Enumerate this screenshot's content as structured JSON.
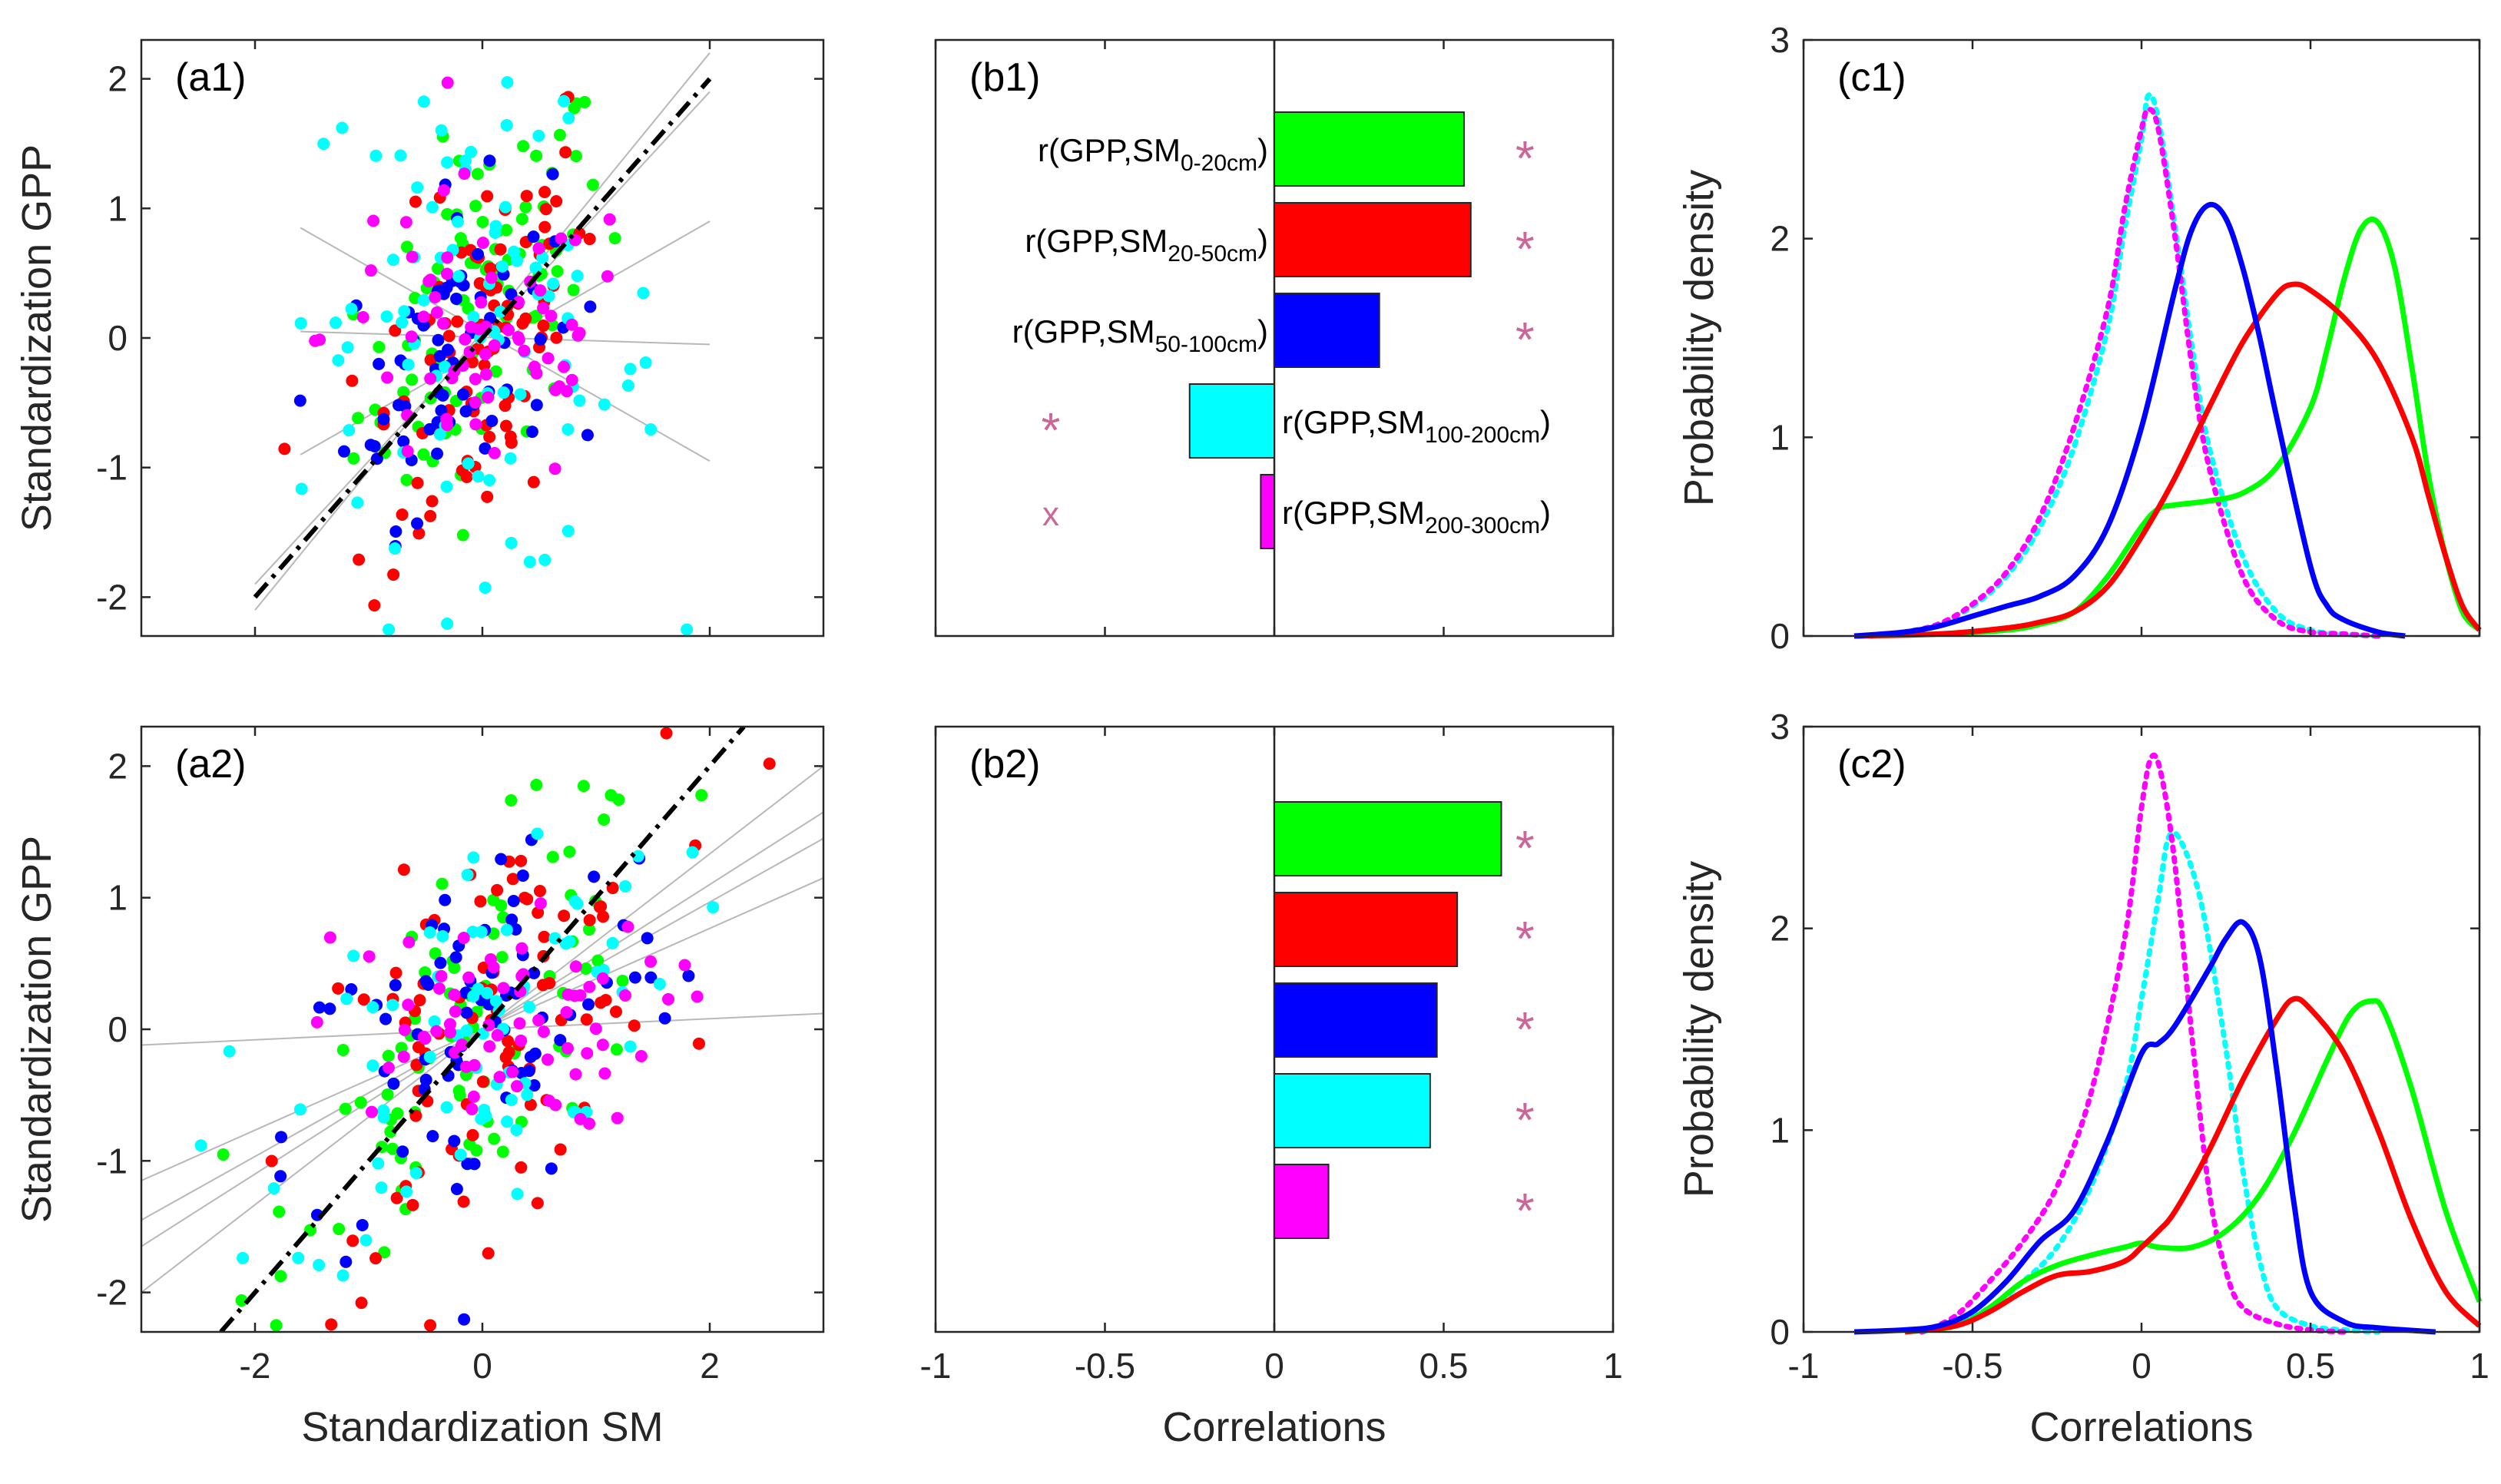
{
  "figure": {
    "series_colors": [
      "#00ff00",
      "#ff0000",
      "#0000ff",
      "#00ffff",
      "#ff00ff"
    ],
    "marker_color": "#cc6699",
    "panels": {
      "a1": {
        "label": "(a1)",
        "ylabel": "Standardization GPP",
        "xlabel": ""
      },
      "a2": {
        "label": "(a2)",
        "ylabel": "Standardization GPP",
        "xlabel": "Standardization SM"
      },
      "b1": {
        "label": "(b1)",
        "xlabel": ""
      },
      "b2": {
        "label": "(b2)",
        "xlabel": "Correlations"
      },
      "c1": {
        "label": "(c1)",
        "ylabel": "Probability density",
        "xlabel": ""
      },
      "c2": {
        "label": "(c2)",
        "ylabel": "Probability density",
        "xlabel": "Correlations"
      }
    }
  },
  "chart_data": [
    {
      "id": "a1",
      "type": "scatter",
      "title": "(a1)",
      "xlabel": "",
      "ylabel": "Standardization GPP",
      "xlim": [
        -3,
        3
      ],
      "ylim": [
        -2.3,
        2.3
      ],
      "yticks": [
        "-2",
        "-1",
        "0",
        "1",
        "2"
      ],
      "xticks": [],
      "one_to_one_line": {
        "x": [
          -2,
          2
        ],
        "y": [
          -2,
          2
        ],
        "style": "dash-dot",
        "color": "#000000"
      },
      "fit_lines": [
        {
          "x": [
            -2,
            2
          ],
          "y": [
            -2.1,
            2.2
          ]
        },
        {
          "x": [
            -2,
            2
          ],
          "y": [
            -1.9,
            1.9
          ]
        },
        {
          "x": [
            -1.6,
            2
          ],
          "y": [
            -0.9,
            0.9
          ]
        },
        {
          "x": [
            -1.6,
            2
          ],
          "y": [
            0.85,
            -0.95
          ]
        },
        {
          "x": [
            -1.6,
            2
          ],
          "y": [
            0.05,
            -0.05
          ]
        }
      ],
      "series": [
        {
          "name": "SM0-20cm",
          "color": "#00ff00",
          "cluster": {
            "mx": 0,
            "my": 0.25,
            "sx": 0.55,
            "sy": 0.75,
            "r": 0.55,
            "n": 90
          }
        },
        {
          "name": "SM20-50cm",
          "color": "#ff0000",
          "cluster": {
            "mx": 0,
            "my": 0,
            "sx": 0.5,
            "sy": 0.9,
            "r": 0.55,
            "n": 90
          }
        },
        {
          "name": "SM50-100cm",
          "color": "#0000ff",
          "cluster": {
            "mx": -0.3,
            "my": -0.1,
            "sx": 0.45,
            "sy": 0.6,
            "r": 0.3,
            "n": 70
          }
        },
        {
          "name": "SM100-200cm",
          "color": "#00ffff",
          "cluster": {
            "mx": 0,
            "my": 0,
            "sx": 0.8,
            "sy": 0.9,
            "r": -0.25,
            "n": 90
          }
        },
        {
          "name": "SM200-300cm",
          "color": "#ff00ff",
          "cluster": {
            "mx": 0,
            "my": 0,
            "sx": 0.7,
            "sy": 0.6,
            "r": -0.02,
            "n": 70
          }
        }
      ]
    },
    {
      "id": "a2",
      "type": "scatter",
      "title": "(a2)",
      "xlabel": "Standardization SM",
      "ylabel": "Standardization GPP",
      "xlim": [
        -3,
        3
      ],
      "ylim": [
        -2.3,
        2.3
      ],
      "yticks": [
        "-2",
        "-1",
        "0",
        "1",
        "2"
      ],
      "xticks": [
        "-2",
        "0",
        "2"
      ],
      "one_to_one_line": {
        "x": [
          -2.3,
          2.3
        ],
        "y": [
          -2.3,
          2.3
        ],
        "style": "dash-dot",
        "color": "#000000"
      },
      "fit_lines": [
        {
          "x": [
            -3,
            3
          ],
          "y": [
            -2.0,
            2.0
          ]
        },
        {
          "x": [
            -3,
            3
          ],
          "y": [
            -1.65,
            1.65
          ]
        },
        {
          "x": [
            -3,
            3
          ],
          "y": [
            -1.45,
            1.45
          ]
        },
        {
          "x": [
            -3,
            3
          ],
          "y": [
            -1.15,
            1.15
          ]
        },
        {
          "x": [
            -3,
            3
          ],
          "y": [
            -0.12,
            0.12
          ]
        }
      ],
      "series": [
        {
          "name": "SM0-20cm",
          "color": "#00ff00",
          "cluster": {
            "mx": 0,
            "my": 0,
            "sx": 0.8,
            "sy": 0.85,
            "r": 0.66,
            "n": 85
          }
        },
        {
          "name": "SM20-50cm",
          "color": "#ff0000",
          "cluster": {
            "mx": 0,
            "my": 0,
            "sx": 0.8,
            "sy": 0.85,
            "r": 0.54,
            "n": 85
          }
        },
        {
          "name": "SM50-100cm",
          "color": "#0000ff",
          "cluster": {
            "mx": 0,
            "my": 0,
            "sx": 0.85,
            "sy": 0.85,
            "r": 0.48,
            "n": 80
          }
        },
        {
          "name": "SM100-200cm",
          "color": "#00ffff",
          "cluster": {
            "mx": 0,
            "my": 0,
            "sx": 0.85,
            "sy": 0.8,
            "r": 0.45,
            "n": 75
          }
        },
        {
          "name": "SM200-300cm",
          "color": "#ff00ff",
          "cluster": {
            "mx": 0,
            "my": 0,
            "sx": 0.8,
            "sy": 0.4,
            "r": 0.1,
            "n": 70
          }
        }
      ]
    },
    {
      "id": "b1",
      "type": "bar",
      "orientation": "horizontal",
      "title": "(b1)",
      "xlabel": "",
      "xlim": [
        -1,
        1
      ],
      "xticks": [],
      "bars": [
        {
          "label_main": "r(GPP,SM",
          "label_sub": "0-20cm",
          "label_end": ")",
          "value": 0.56,
          "color": "#00ff00",
          "sig": "*",
          "sig_x": 0.74
        },
        {
          "label_main": "r(GPP,SM",
          "label_sub": "20-50cm",
          "label_end": ")",
          "value": 0.58,
          "color": "#ff0000",
          "sig": "*",
          "sig_x": 0.74
        },
        {
          "label_main": "r(GPP,SM",
          "label_sub": "50-100cm",
          "label_end": ")",
          "value": 0.31,
          "color": "#0000ff",
          "sig": "*",
          "sig_x": 0.74
        },
        {
          "label_main": "r(GPP,SM",
          "label_sub": "100-200cm",
          "label_end": ")",
          "value": -0.25,
          "color": "#00ffff",
          "sig": "*",
          "sig_x": -0.66
        },
        {
          "label_main": "r(GPP,SM",
          "label_sub": "200-300cm",
          "label_end": ")",
          "value": -0.04,
          "color": "#ff00ff",
          "sig": "x",
          "sig_x": -0.66
        }
      ]
    },
    {
      "id": "b2",
      "type": "bar",
      "orientation": "horizontal",
      "title": "(b2)",
      "xlabel": "Correlations",
      "xlim": [
        -1,
        1
      ],
      "xticks": [
        "-1",
        "-0.5",
        "0",
        "0.5",
        "1"
      ],
      "bars": [
        {
          "value": 0.67,
          "color": "#00ff00",
          "sig": "*",
          "sig_x": 0.74
        },
        {
          "value": 0.54,
          "color": "#ff0000",
          "sig": "*",
          "sig_x": 0.74
        },
        {
          "value": 0.48,
          "color": "#0000ff",
          "sig": "*",
          "sig_x": 0.74
        },
        {
          "value": 0.46,
          "color": "#00ffff",
          "sig": "*",
          "sig_x": 0.74
        },
        {
          "value": 0.16,
          "color": "#ff00ff",
          "sig": "*",
          "sig_x": 0.74
        }
      ]
    },
    {
      "id": "c1",
      "type": "line",
      "title": "(c1)",
      "xlabel": "",
      "ylabel": "Probability density",
      "xlim": [
        -1,
        1
      ],
      "ylim": [
        0,
        3
      ],
      "yticks": [
        "0",
        "1",
        "2",
        "3"
      ],
      "xticks": [],
      "series": [
        {
          "name": "SM0-20cm",
          "color": "#00ff00",
          "dash": false,
          "x": [
            -0.85,
            -0.6,
            -0.4,
            -0.3,
            -0.2,
            -0.1,
            0,
            0.05,
            0.1,
            0.2,
            0.3,
            0.4,
            0.5,
            0.55,
            0.6,
            0.65,
            0.7,
            0.75,
            0.8,
            0.85,
            0.9,
            0.95,
            1.0
          ],
          "y": [
            0,
            0.01,
            0.03,
            0.06,
            0.12,
            0.3,
            0.55,
            0.64,
            0.66,
            0.68,
            0.72,
            0.85,
            1.15,
            1.45,
            1.8,
            2.05,
            2.08,
            1.85,
            1.35,
            0.8,
            0.4,
            0.12,
            0.03
          ]
        },
        {
          "name": "SM20-50cm",
          "color": "#ff0000",
          "dash": false,
          "x": [
            -0.85,
            -0.6,
            -0.4,
            -0.3,
            -0.2,
            -0.1,
            0,
            0.1,
            0.2,
            0.3,
            0.4,
            0.45,
            0.5,
            0.6,
            0.7,
            0.8,
            0.85,
            0.9,
            0.95,
            1.0
          ],
          "y": [
            0,
            0.01,
            0.04,
            0.07,
            0.12,
            0.25,
            0.5,
            0.8,
            1.15,
            1.48,
            1.72,
            1.77,
            1.74,
            1.6,
            1.38,
            1.0,
            0.7,
            0.4,
            0.15,
            0.03
          ]
        },
        {
          "name": "SM50-100cm",
          "color": "#0000ff",
          "dash": false,
          "x": [
            -0.85,
            -0.7,
            -0.6,
            -0.5,
            -0.4,
            -0.3,
            -0.2,
            -0.1,
            0,
            0.1,
            0.15,
            0.2,
            0.25,
            0.3,
            0.35,
            0.4,
            0.5,
            0.55,
            0.6,
            0.7,
            0.78
          ],
          "y": [
            0,
            0.02,
            0.05,
            0.1,
            0.15,
            0.2,
            0.3,
            0.55,
            1.05,
            1.75,
            2.05,
            2.17,
            2.1,
            1.85,
            1.5,
            1.1,
            0.35,
            0.15,
            0.08,
            0.02,
            0
          ]
        },
        {
          "name": "SM100-200cm",
          "color": "#00ffff",
          "dash": true,
          "x": [
            -0.8,
            -0.7,
            -0.6,
            -0.5,
            -0.4,
            -0.3,
            -0.2,
            -0.1,
            -0.05,
            0,
            0.02,
            0.05,
            0.1,
            0.15,
            0.2,
            0.3,
            0.4,
            0.5,
            0.6,
            0.7
          ],
          "y": [
            0,
            0.02,
            0.06,
            0.15,
            0.3,
            0.55,
            0.95,
            1.55,
            2.05,
            2.5,
            2.72,
            2.6,
            2.05,
            1.45,
            0.95,
            0.4,
            0.12,
            0.03,
            0.01,
            0
          ]
        },
        {
          "name": "SM200-300cm",
          "color": "#ff00ff",
          "dash": true,
          "x": [
            -0.8,
            -0.7,
            -0.6,
            -0.5,
            -0.4,
            -0.3,
            -0.2,
            -0.1,
            -0.05,
            0,
            0.02,
            0.05,
            0.1,
            0.15,
            0.2,
            0.3,
            0.4,
            0.5,
            0.6,
            0.7
          ],
          "y": [
            0,
            0.02,
            0.06,
            0.16,
            0.32,
            0.6,
            1.05,
            1.65,
            2.15,
            2.55,
            2.65,
            2.55,
            2.0,
            1.35,
            0.85,
            0.3,
            0.08,
            0.02,
            0.01,
            0
          ]
        }
      ]
    },
    {
      "id": "c2",
      "type": "line",
      "title": "(c2)",
      "xlabel": "Correlations",
      "ylabel": "Probability density",
      "xlim": [
        -1,
        1
      ],
      "ylim": [
        0,
        3
      ],
      "yticks": [
        "0",
        "1",
        "2",
        "3"
      ],
      "xticks": [
        "-1",
        "-0.5",
        "0",
        "0.5",
        "1"
      ],
      "series": [
        {
          "name": "SM0-20cm",
          "color": "#00ff00",
          "dash": false,
          "x": [
            -0.7,
            -0.55,
            -0.45,
            -0.35,
            -0.25,
            -0.15,
            -0.05,
            0,
            0.05,
            0.15,
            0.25,
            0.35,
            0.45,
            0.55,
            0.62,
            0.68,
            0.72,
            0.8,
            0.9,
            1.0
          ],
          "y": [
            0,
            0.03,
            0.12,
            0.25,
            0.33,
            0.38,
            0.42,
            0.44,
            0.42,
            0.42,
            0.5,
            0.68,
            0.98,
            1.35,
            1.58,
            1.64,
            1.58,
            1.2,
            0.6,
            0.15
          ]
        },
        {
          "name": "SM20-50cm",
          "color": "#ff0000",
          "dash": false,
          "x": [
            -0.7,
            -0.55,
            -0.45,
            -0.35,
            -0.25,
            -0.15,
            -0.05,
            0,
            0.05,
            0.1,
            0.2,
            0.3,
            0.4,
            0.45,
            0.5,
            0.6,
            0.7,
            0.8,
            0.9,
            1.0
          ],
          "y": [
            0,
            0.03,
            0.1,
            0.2,
            0.28,
            0.3,
            0.35,
            0.42,
            0.5,
            0.6,
            0.9,
            1.25,
            1.55,
            1.65,
            1.6,
            1.38,
            1.0,
            0.55,
            0.2,
            0.03
          ]
        },
        {
          "name": "SM50-100cm",
          "color": "#0000ff",
          "dash": false,
          "x": [
            -0.85,
            -0.7,
            -0.6,
            -0.5,
            -0.4,
            -0.3,
            -0.2,
            -0.1,
            0,
            0.05,
            0.1,
            0.2,
            0.25,
            0.3,
            0.35,
            0.4,
            0.45,
            0.5,
            0.6,
            0.7,
            0.87
          ],
          "y": [
            0,
            0.01,
            0.03,
            0.1,
            0.25,
            0.45,
            0.6,
            0.95,
            1.38,
            1.43,
            1.52,
            1.8,
            1.95,
            2.03,
            1.85,
            1.3,
            0.65,
            0.2,
            0.05,
            0.02,
            0
          ]
        },
        {
          "name": "SM100-200cm",
          "color": "#00ffff",
          "dash": true,
          "x": [
            -0.65,
            -0.55,
            -0.45,
            -0.35,
            -0.25,
            -0.15,
            -0.05,
            0,
            0.05,
            0.08,
            0.12,
            0.18,
            0.25,
            0.3,
            0.35,
            0.4,
            0.5,
            0.6,
            0.7
          ],
          "y": [
            0,
            0.04,
            0.12,
            0.25,
            0.42,
            0.72,
            1.2,
            1.65,
            2.15,
            2.45,
            2.42,
            2.1,
            1.4,
            0.8,
            0.35,
            0.12,
            0.03,
            0.01,
            0
          ]
        },
        {
          "name": "SM200-300cm",
          "color": "#ff00ff",
          "dash": true,
          "x": [
            -0.65,
            -0.55,
            -0.45,
            -0.35,
            -0.25,
            -0.15,
            -0.05,
            0,
            0.03,
            0.06,
            0.1,
            0.15,
            0.2,
            0.25,
            0.3,
            0.4,
            0.5,
            0.6
          ],
          "y": [
            0,
            0.08,
            0.25,
            0.45,
            0.72,
            1.18,
            1.95,
            2.6,
            2.85,
            2.75,
            2.3,
            1.45,
            0.7,
            0.3,
            0.12,
            0.04,
            0.01,
            0
          ]
        }
      ]
    }
  ]
}
